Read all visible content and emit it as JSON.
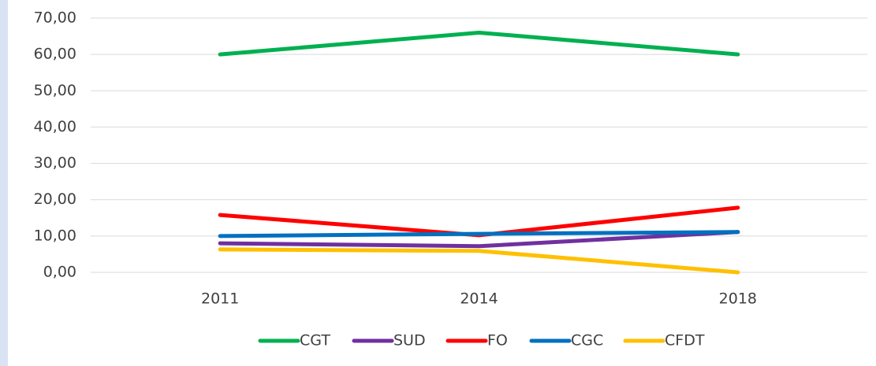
{
  "chart_data": {
    "type": "line",
    "categories": [
      "2011",
      "2014",
      "2018"
    ],
    "series": [
      {
        "name": "CGT",
        "color": "#00b050",
        "values": [
          60,
          66,
          60
        ]
      },
      {
        "name": "SUD",
        "color": "#7030a0",
        "values": [
          8,
          7.2,
          11.1
        ]
      },
      {
        "name": "FO",
        "color": "#ff0000",
        "values": [
          15.8,
          10.2,
          17.8
        ]
      },
      {
        "name": "CGC",
        "color": "#0070c0",
        "values": [
          10,
          10.6,
          11.1
        ]
      },
      {
        "name": "CFDT",
        "color": "#ffc000",
        "values": [
          6.3,
          5.9,
          0
        ]
      }
    ],
    "ylim": [
      0,
      70
    ],
    "yticks": [
      {
        "value": 0,
        "label": "0,00"
      },
      {
        "value": 10,
        "label": "10,00"
      },
      {
        "value": 20,
        "label": "20,00"
      },
      {
        "value": 30,
        "label": "30,00"
      },
      {
        "value": 40,
        "label": "40,00"
      },
      {
        "value": 50,
        "label": "50,00"
      },
      {
        "value": 60,
        "label": "60,00"
      },
      {
        "value": 70,
        "label": "70,00"
      }
    ],
    "grid": true,
    "legend": "bottom"
  }
}
